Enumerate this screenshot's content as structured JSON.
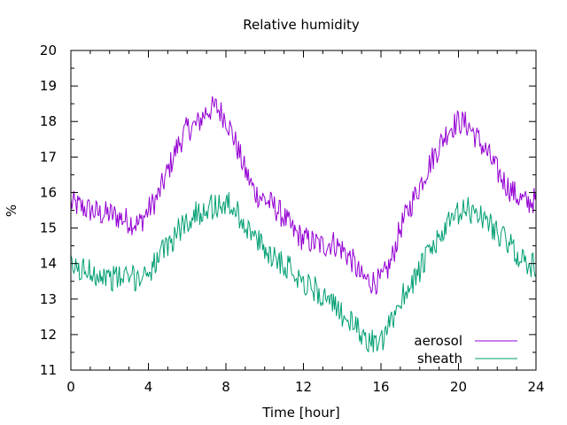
{
  "chart_data": {
    "type": "line",
    "title": "Relative humidity",
    "xlabel": "Time [hour]",
    "ylabel": "%",
    "xlim": [
      0,
      24
    ],
    "ylim": [
      11,
      20
    ],
    "x_ticks": [
      0,
      4,
      8,
      12,
      16,
      20,
      24
    ],
    "y_ticks": [
      11,
      12,
      13,
      14,
      15,
      16,
      17,
      18,
      19,
      20
    ],
    "x_minor_step": 1,
    "y_minor_step": 0.5,
    "grid": false,
    "legend_position": "bottom-right",
    "series": [
      {
        "name": "aerosol",
        "color": "#9400d3",
        "x": [
          0,
          0.5,
          1,
          1.5,
          2,
          2.5,
          3,
          3.5,
          4,
          4.5,
          5,
          5.5,
          6,
          6.5,
          7,
          7.5,
          8,
          8.5,
          9,
          9.5,
          10,
          10.5,
          11,
          11.5,
          12,
          12.5,
          13,
          13.5,
          14,
          14.5,
          15,
          15.5,
          16,
          16.5,
          17,
          17.5,
          18,
          18.5,
          19,
          19.5,
          20,
          20.5,
          21,
          21.5,
          22,
          22.5,
          23,
          23.5,
          24
        ],
        "y": [
          15.7,
          15.6,
          15.5,
          15.4,
          15.4,
          15.3,
          15.2,
          15.1,
          15.5,
          15.9,
          16.6,
          17.3,
          17.8,
          17.9,
          18.3,
          18.4,
          18.1,
          17.4,
          16.6,
          16.0,
          15.8,
          15.6,
          15.3,
          14.9,
          14.7,
          14.6,
          14.5,
          14.6,
          14.4,
          14.1,
          13.6,
          13.5,
          13.5,
          14.0,
          15.0,
          15.6,
          16.2,
          16.8,
          17.3,
          17.8,
          18.0,
          17.9,
          17.5,
          17.1,
          16.6,
          16.2,
          15.9,
          15.7,
          15.8
        ]
      },
      {
        "name": "sheath",
        "color": "#009e73",
        "x": [
          0,
          0.5,
          1,
          1.5,
          2,
          2.5,
          3,
          3.5,
          4,
          4.5,
          5,
          5.5,
          6,
          6.5,
          7,
          7.5,
          8,
          8.5,
          9,
          9.5,
          10,
          10.5,
          11,
          11.5,
          12,
          12.5,
          13,
          13.5,
          14,
          14.5,
          15,
          15.5,
          16,
          16.5,
          17,
          17.5,
          18,
          18.5,
          19,
          19.5,
          20,
          20.5,
          21,
          21.5,
          22,
          22.5,
          23,
          23.5,
          24
        ],
        "y": [
          13.9,
          13.8,
          13.8,
          13.7,
          13.6,
          13.6,
          13.6,
          13.6,
          13.8,
          14.1,
          14.5,
          14.9,
          15.2,
          15.4,
          15.6,
          15.6,
          15.7,
          15.5,
          15.1,
          14.7,
          14.4,
          14.2,
          14.0,
          13.8,
          13.5,
          13.3,
          13.1,
          12.8,
          12.6,
          12.3,
          12.0,
          11.8,
          11.7,
          12.3,
          13.0,
          13.4,
          13.8,
          14.3,
          14.7,
          15.1,
          15.4,
          15.5,
          15.4,
          15.2,
          14.9,
          14.6,
          14.3,
          14.0,
          13.9
        ]
      }
    ]
  }
}
